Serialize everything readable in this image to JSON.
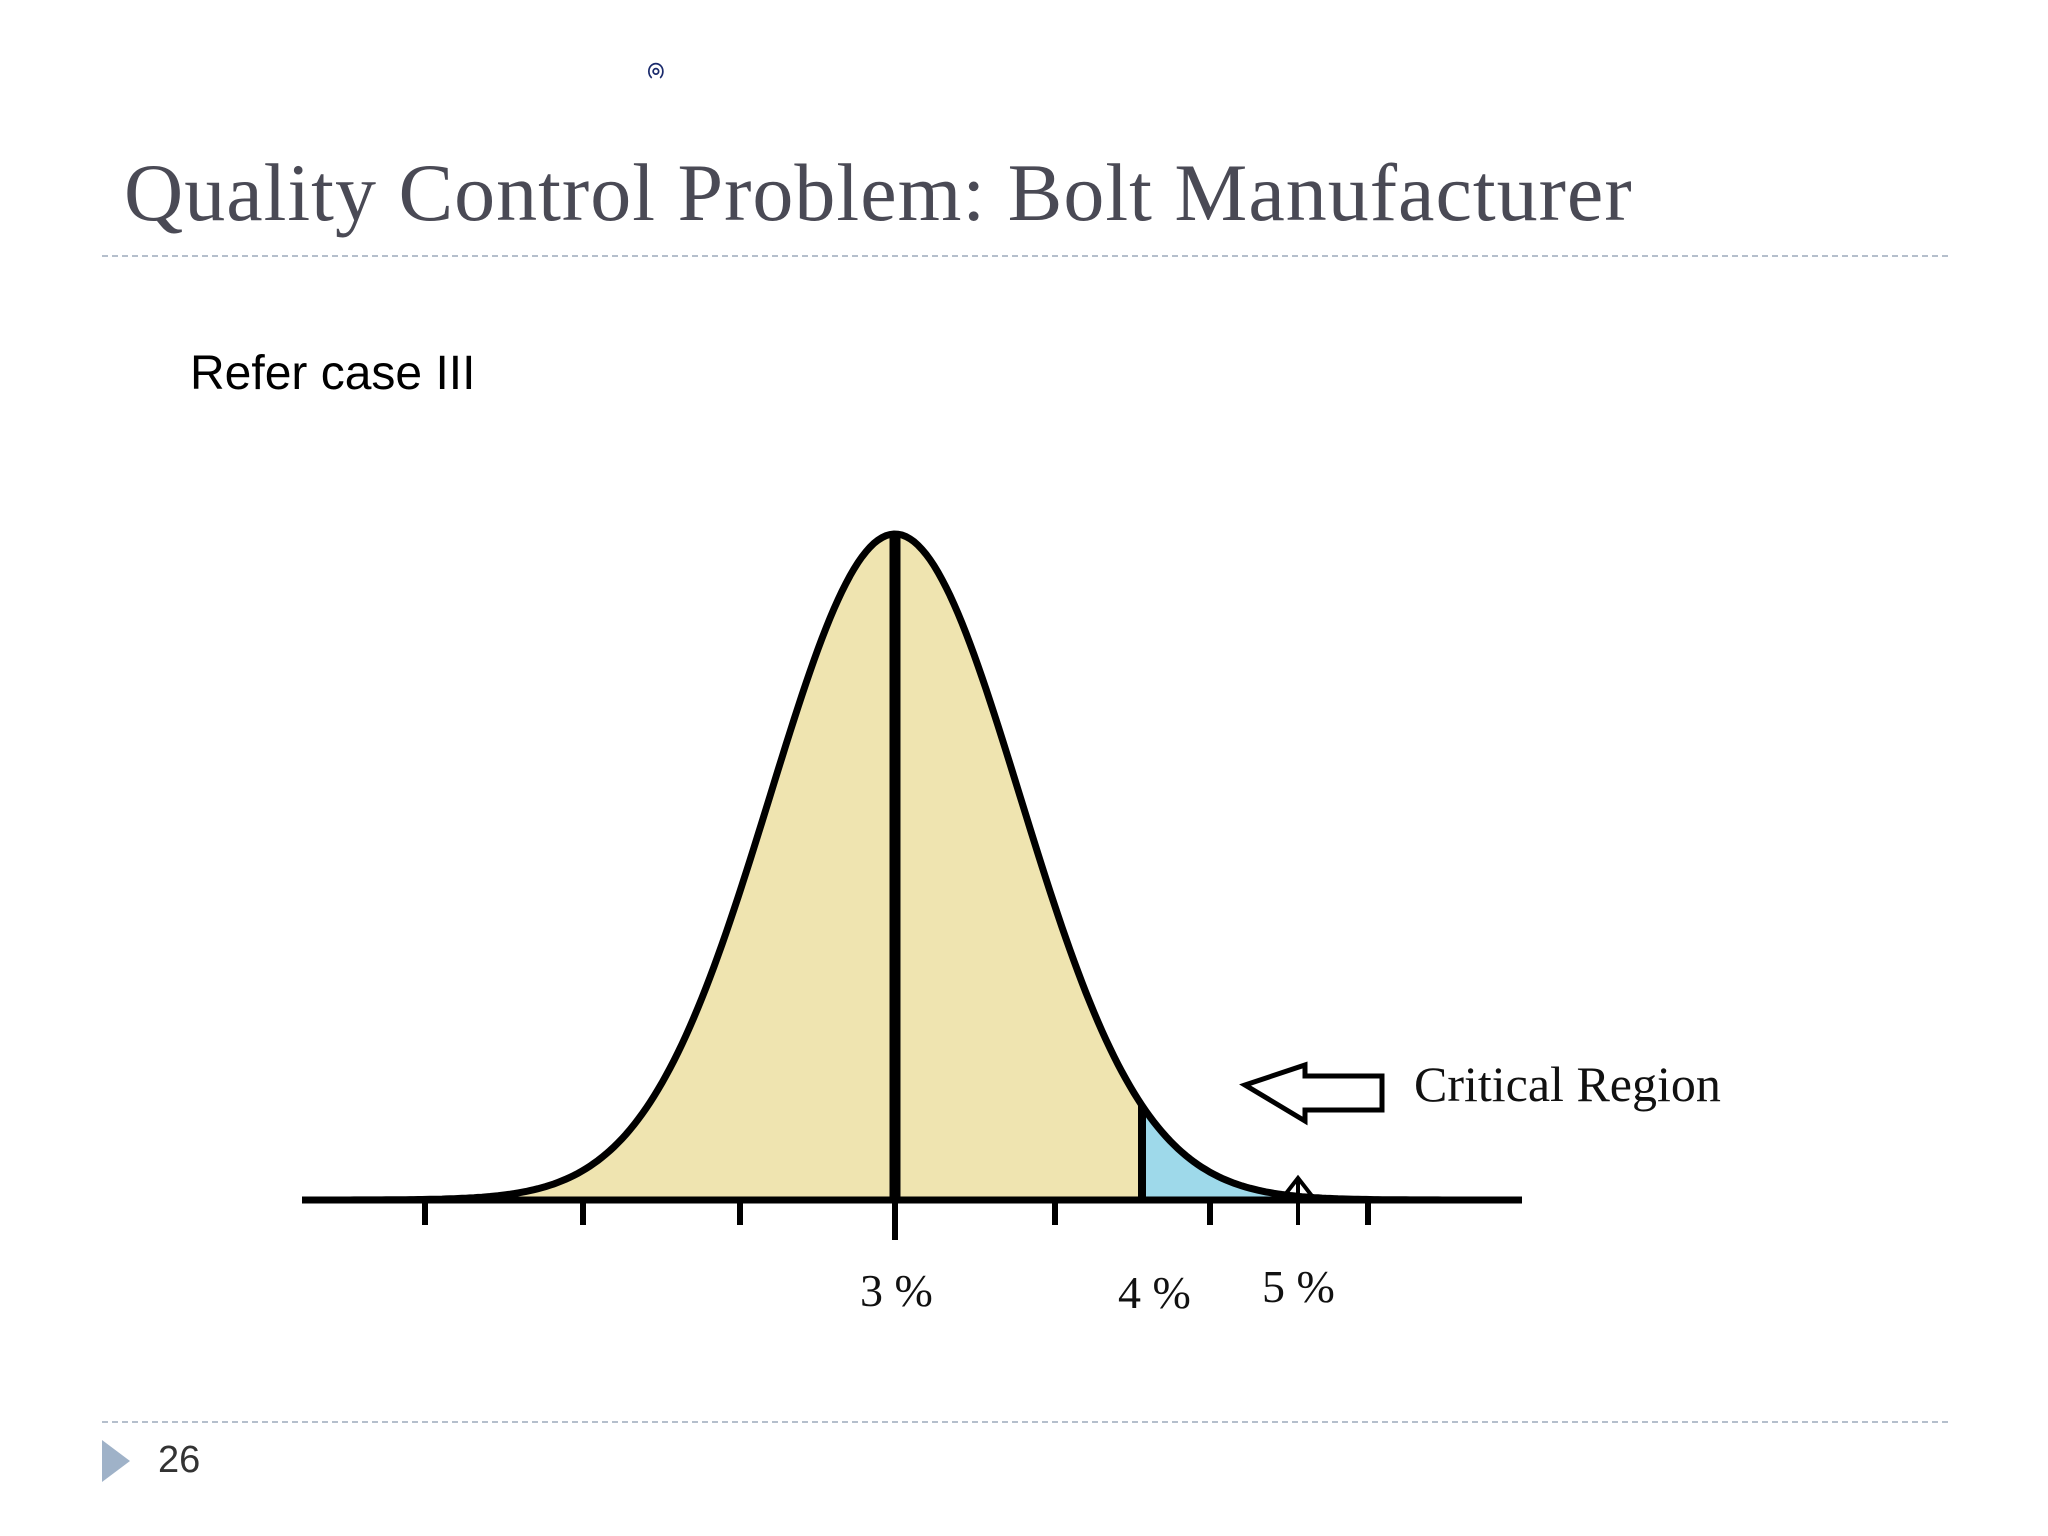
{
  "slide": {
    "title": "Quality Control Problem: Bolt Manufacturer",
    "subtitle": "Refer case III",
    "page_number": "26",
    "ink_mark": "ၐ"
  },
  "diagram": {
    "tick_labels": [
      "3 %",
      "4 %",
      "5 %"
    ],
    "callout": "Critical Region",
    "colors": {
      "curve_fill": "#efe4b0",
      "critical_fill": "#9ed9ea",
      "line": "#000000",
      "accent": "#9fb2c8"
    }
  }
}
